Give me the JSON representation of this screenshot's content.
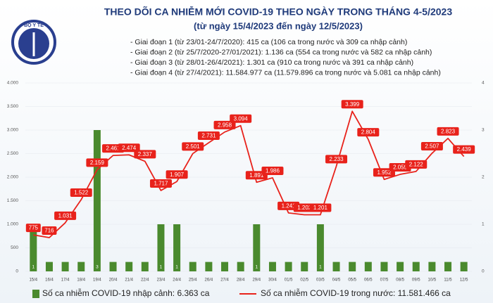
{
  "logo_text": "BỘ Y TẾ",
  "chart_data": {
    "type": "bar_line",
    "title": "THEO DÕI CA NHIỄM MỚI COVID-19 THEO NGÀY TRONG THÁNG 4-5/2023",
    "subtitle": "(từ ngày 15/4/2023 đến ngày 12/5/2023)",
    "notes": [
      "- Giai đoạn 1 (từ 23/01-24/7/2020): 415 ca (106 ca trong nước và 309 ca nhập cảnh)",
      "- Giai đoạn 2 (từ 25/7/2020-27/01/2021): 1.136 ca (554 ca trong nước và 582 ca nhập cảnh)",
      "- Giai đoạn 3 (từ 28/01-26/4/2021): 1.301 ca (910 ca trong nước và 391 ca nhập cảnh)",
      "- Giai đoạn 4 (từ 27/4/2021): 11.584.977 ca (11.579.896 ca trong nước và 5.081 ca nhập cảnh)"
    ],
    "categories": [
      "15/4",
      "16/4",
      "17/4",
      "18/4",
      "19/4",
      "20/4",
      "21/4",
      "22/4",
      "23/4",
      "24/4",
      "25/4",
      "26/4",
      "27/4",
      "28/4",
      "29/4",
      "30/4",
      "01/5",
      "02/5",
      "03/5",
      "04/5",
      "05/5",
      "06/5",
      "07/5",
      "08/5",
      "09/5",
      "10/5",
      "11/5",
      "12/5"
    ],
    "series": [
      {
        "name": "Số ca nhiễm COVID-19 nhập cảnh: 6.363 ca",
        "type": "bar",
        "axis": "y2",
        "color": "#4a8a2e",
        "values": [
          1,
          0.2,
          0.2,
          0.2,
          3,
          0.2,
          0.2,
          0.2,
          1,
          1,
          0.2,
          0.2,
          0.2,
          0.2,
          1,
          0.2,
          0.2,
          0.2,
          1,
          0.2,
          0.2,
          0.2,
          0.2,
          0.2,
          0.2,
          0.2,
          0.2,
          0.2
        ],
        "value_labels": [
          "1",
          null,
          null,
          null,
          "3",
          null,
          null,
          null,
          "1",
          "1",
          null,
          null,
          null,
          null,
          "1",
          null,
          null,
          null,
          "1",
          null,
          null,
          null,
          null,
          null,
          null,
          null,
          null,
          null
        ]
      },
      {
        "name": "Số ca nhiễm COVID-19 trong nước: 11.581.466 ca",
        "type": "line",
        "color": "#e8221b",
        "values": [
          775,
          716,
          1031,
          1522,
          2159,
          2461,
          2474,
          2337,
          1717,
          1907,
          2501,
          2731,
          2958,
          3094,
          1891,
          1986,
          1241,
          1202,
          1201,
          2233,
          3399,
          2804,
          1952,
          2059,
          2122,
          2507,
          2823,
          2439
        ],
        "value_labels": [
          "775",
          "716",
          "1.031",
          "1.522",
          "2.159",
          "2.461",
          "2.474",
          "2.337",
          "1.717",
          "1.907",
          "2.501",
          "2.731",
          "2.958",
          "3.094",
          "1.891",
          "1.986",
          "1.241",
          "1.202",
          "1.201",
          "2.233",
          "3.399",
          "2.804",
          "1.952",
          "2.059",
          "2.122",
          "2.507",
          "2.823",
          "2.439"
        ]
      }
    ],
    "ylim": [
      0,
      4000
    ],
    "yticks": [
      0,
      500,
      {
        "value": 1000,
        "label": "1.000"
      },
      {
        "value": 1500,
        "label": "1.500"
      },
      {
        "value": 2000,
        "label": "2.000"
      },
      {
        "value": 2500,
        "label": "2.500"
      },
      {
        "value": 3000,
        "label": "3.000"
      },
      {
        "value": 3500,
        "label": "3.500"
      },
      {
        "value": 4000,
        "label": "4.000"
      }
    ],
    "y2lim": [
      0,
      4
    ],
    "y2ticks": [
      0,
      1,
      2,
      3,
      4
    ]
  }
}
